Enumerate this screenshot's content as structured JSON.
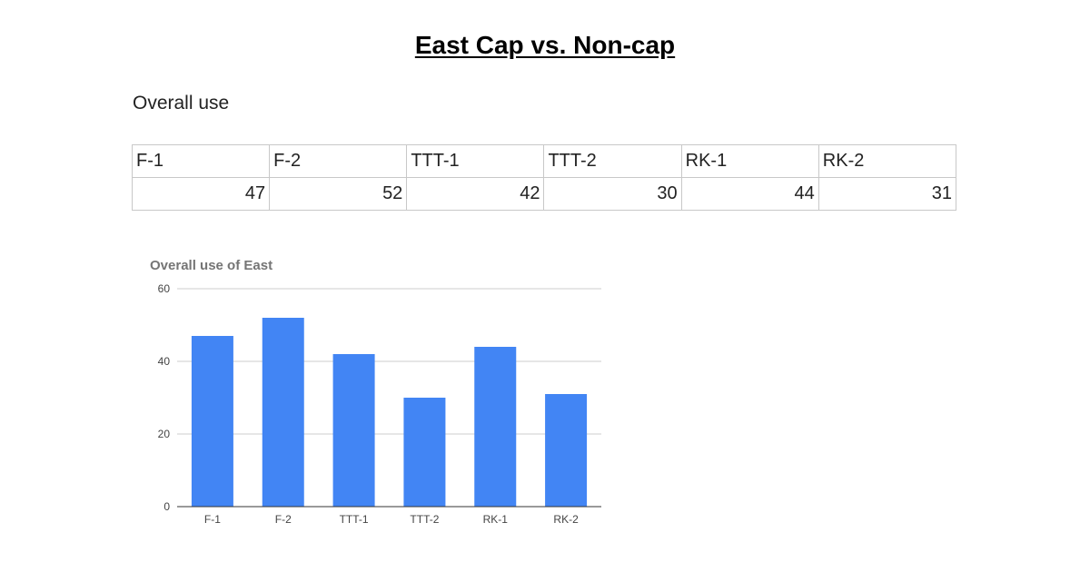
{
  "document": {
    "title": "East Cap vs. Non-cap",
    "section_heading": "Overall use"
  },
  "table": {
    "headers": [
      "F-1",
      "F-2",
      "TTT-1",
      "TTT-2",
      "RK-1",
      "RK-2"
    ],
    "values": [
      "47",
      "52",
      "42",
      "30",
      "44",
      "31"
    ]
  },
  "chart_data": {
    "type": "bar",
    "title": "Overall use of East",
    "categories": [
      "F-1",
      "F-2",
      "TTT-1",
      "TTT-2",
      "RK-1",
      "RK-2"
    ],
    "values": [
      47,
      52,
      42,
      30,
      44,
      31
    ],
    "xlabel": "",
    "ylabel": "",
    "ylim": [
      0,
      60
    ],
    "yticks": [
      0,
      20,
      40,
      60
    ],
    "grid": true,
    "legend": "none",
    "bar_color": "#4285f4",
    "grid_color": "#cccccc",
    "axis_color": "#333333"
  }
}
